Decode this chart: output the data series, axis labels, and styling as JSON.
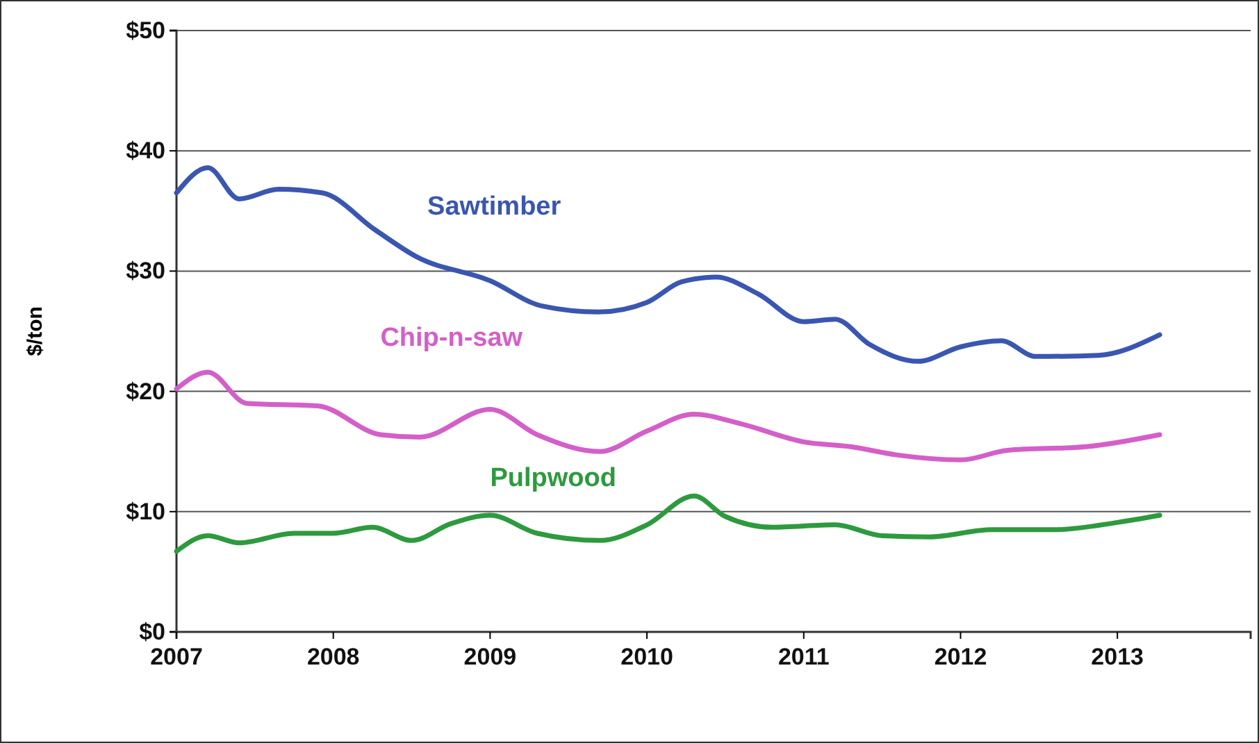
{
  "chart_data": {
    "type": "line",
    "ylabel": "$/ton",
    "xlim": [
      2007,
      2013.85
    ],
    "xticks": [
      2007,
      2008,
      2009,
      2010,
      2011,
      2012,
      2013
    ],
    "ylim": [
      0,
      50
    ],
    "yticks": [
      {
        "value": 0,
        "label": "$0"
      },
      {
        "value": 10,
        "label": "$10"
      },
      {
        "value": 20,
        "label": "$20"
      },
      {
        "value": 30,
        "label": "$30"
      },
      {
        "value": 40,
        "label": "$40"
      },
      {
        "value": 50,
        "label": "$50"
      }
    ],
    "grid": "y",
    "legend": false,
    "marker": "none",
    "line_style": "solid",
    "series": [
      {
        "name": "Sawtimber",
        "color": "#3a56b0",
        "x": [
          2007.0,
          2007.2,
          2007.4,
          2007.65,
          2007.93,
          2008.27,
          2008.53,
          2009.0,
          2009.33,
          2009.69,
          2010.0,
          2010.22,
          2010.44,
          2010.71,
          2011.0,
          2011.2,
          2011.42,
          2011.73,
          2012.0,
          2012.26,
          2012.48,
          2012.88,
          2013.27
        ],
        "values": [
          36.5,
          38.6,
          36,
          36.8,
          36.5,
          33.4,
          31.2,
          29.2,
          27.1,
          26.6,
          27.4,
          29.1,
          29.5,
          28.1,
          25.8,
          26,
          23.9,
          22.5,
          23.7,
          24.2,
          22.9,
          23,
          24.7
        ]
      },
      {
        "name": "Chip-n-saw",
        "color": "#d45fc8",
        "x": [
          2007.0,
          2007.2,
          2007.45,
          2007.9,
          2008.3,
          2008.55,
          2009.0,
          2009.3,
          2009.7,
          2010.0,
          2010.3,
          2010.6,
          2011.0,
          2011.3,
          2011.6,
          2012.0,
          2012.3,
          2012.8,
          2013.27
        ],
        "values": [
          20.2,
          21.6,
          19,
          18.8,
          16.4,
          16.2,
          18.5,
          16.4,
          15,
          16.7,
          18.1,
          17.3,
          15.8,
          15.4,
          14.7,
          14.3,
          15.1,
          15.4,
          16.4
        ]
      },
      {
        "name": "Pulpwood",
        "color": "#2e9a3e",
        "x": [
          2007.0,
          2007.2,
          2007.4,
          2007.75,
          2008.0,
          2008.25,
          2008.5,
          2008.75,
          2009.0,
          2009.3,
          2009.7,
          2010.0,
          2010.3,
          2010.5,
          2010.8,
          2011.2,
          2011.5,
          2011.8,
          2012.2,
          2012.6,
          2013.0,
          2013.27
        ],
        "values": [
          6.7,
          8.0,
          7.4,
          8.2,
          8.2,
          8.7,
          7.6,
          9.0,
          9.7,
          8.2,
          7.6,
          8.9,
          11.3,
          9.6,
          8.7,
          8.9,
          8.0,
          7.9,
          8.5,
          8.5,
          9.1,
          9.7
        ]
      }
    ]
  }
}
